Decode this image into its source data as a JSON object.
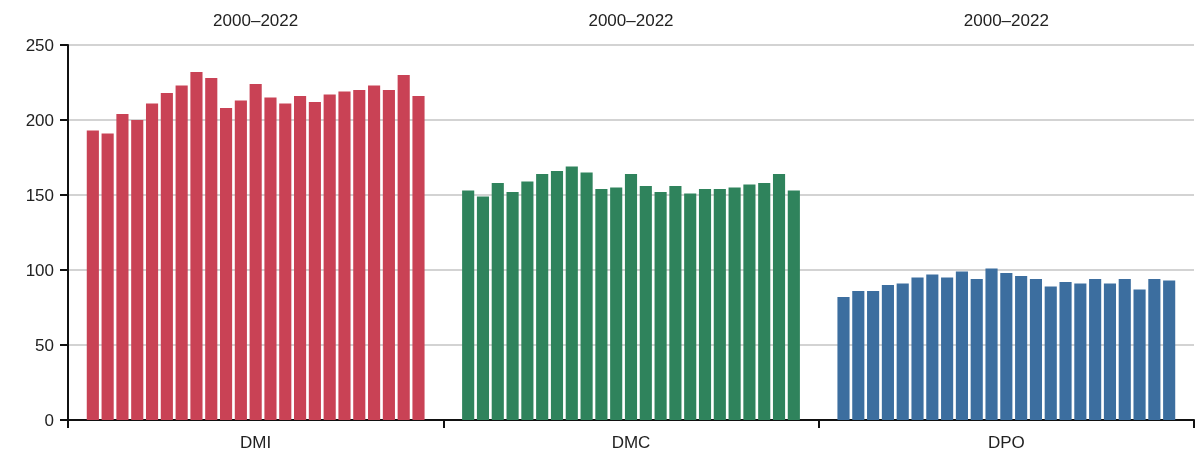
{
  "chart_data": {
    "type": "bar",
    "categories": [
      "DMI",
      "DMC",
      "DPO"
    ],
    "annotations": [
      "2000–2022",
      "2000–2022",
      "2000–2022"
    ],
    "series": [
      {
        "colors": [
          "#c94255",
          "#2f835c",
          "#3c6e9f"
        ],
        "values": [
          193,
          153,
          82
        ]
      },
      {
        "colors": [
          "#c94255",
          "#2f835c",
          "#3c6e9f"
        ],
        "values": [
          191,
          149,
          86
        ]
      },
      {
        "colors": [
          "#c94255",
          "#2f835c",
          "#3c6e9f"
        ],
        "values": [
          204,
          158,
          86
        ]
      },
      {
        "colors": [
          "#c94255",
          "#2f835c",
          "#3c6e9f"
        ],
        "values": [
          200,
          152,
          90
        ]
      },
      {
        "colors": [
          "#c94255",
          "#2f835c",
          "#3c6e9f"
        ],
        "values": [
          211,
          159,
          91
        ]
      },
      {
        "colors": [
          "#c94255",
          "#2f835c",
          "#3c6e9f"
        ],
        "values": [
          218,
          164,
          95
        ]
      },
      {
        "colors": [
          "#c94255",
          "#2f835c",
          "#3c6e9f"
        ],
        "values": [
          223,
          166,
          97
        ]
      },
      {
        "colors": [
          "#c94255",
          "#2f835c",
          "#3c6e9f"
        ],
        "values": [
          232,
          169,
          95
        ]
      },
      {
        "colors": [
          "#c94255",
          "#2f835c",
          "#3c6e9f"
        ],
        "values": [
          228,
          165,
          99
        ]
      },
      {
        "colors": [
          "#c94255",
          "#2f835c",
          "#3c6e9f"
        ],
        "values": [
          208,
          154,
          94
        ]
      },
      {
        "colors": [
          "#c94255",
          "#2f835c",
          "#3c6e9f"
        ],
        "values": [
          213,
          155,
          101
        ]
      },
      {
        "colors": [
          "#c94255",
          "#2f835c",
          "#3c6e9f"
        ],
        "values": [
          224,
          164,
          98
        ]
      },
      {
        "colors": [
          "#c94255",
          "#2f835c",
          "#3c6e9f"
        ],
        "values": [
          215,
          156,
          96
        ]
      },
      {
        "colors": [
          "#c94255",
          "#2f835c",
          "#3c6e9f"
        ],
        "values": [
          211,
          152,
          94
        ]
      },
      {
        "colors": [
          "#c94255",
          "#2f835c",
          "#3c6e9f"
        ],
        "values": [
          216,
          156,
          89
        ]
      },
      {
        "colors": [
          "#c94255",
          "#2f835c",
          "#3c6e9f"
        ],
        "values": [
          212,
          151,
          92
        ]
      },
      {
        "colors": [
          "#c94255",
          "#2f835c",
          "#3c6e9f"
        ],
        "values": [
          217,
          154,
          91
        ]
      },
      {
        "colors": [
          "#c94255",
          "#2f835c",
          "#3c6e9f"
        ],
        "values": [
          219,
          154,
          94
        ]
      },
      {
        "colors": [
          "#c94255",
          "#2f835c",
          "#3c6e9f"
        ],
        "values": [
          220,
          155,
          91
        ]
      },
      {
        "colors": [
          "#c94255",
          "#2f835c",
          "#3c6e9f"
        ],
        "values": [
          223,
          157,
          94
        ]
      },
      {
        "colors": [
          "#c94255",
          "#2f835c",
          "#3c6e9f"
        ],
        "values": [
          220,
          158,
          87
        ]
      },
      {
        "colors": [
          "#c94255",
          "#2f835c",
          "#3c6e9f"
        ],
        "values": [
          230,
          164,
          94
        ]
      },
      {
        "colors": [
          "#c94255",
          "#2f835c",
          "#3c6e9f"
        ],
        "values": [
          216,
          153,
          93
        ]
      }
    ],
    "ylim": [
      0,
      250
    ],
    "yticks": [
      0,
      50,
      100,
      150,
      200,
      250
    ],
    "grid": "y"
  }
}
